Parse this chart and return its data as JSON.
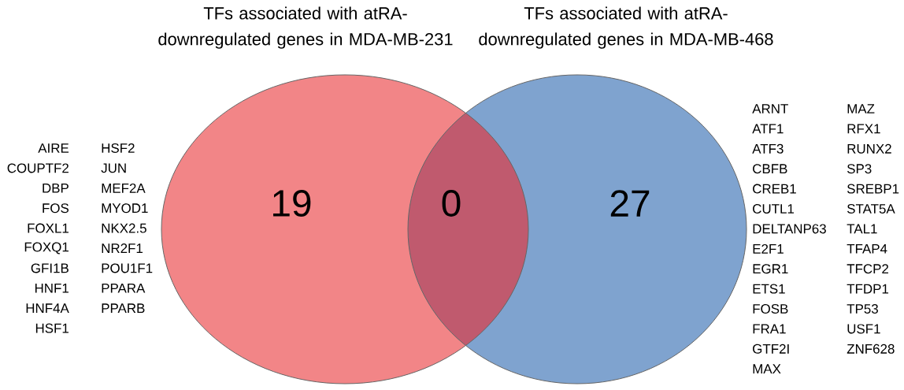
{
  "chart_data": {
    "type": "other",
    "categories": [
      null,
      null,
      null
    ],
    "values": [
      19,
      0,
      27
    ],
    "colors": [
      "#f28587",
      "#c05a6e",
      "#7fa3cf"
    ],
    "data_labels": true,
    "annotations": [
      "TFs associated with atRA-downregulated genes in MDA-MB-231",
      "TFs associated with atRA-downregulated genes in MDA-MB-468",
      "AIRE",
      "COUPTF2",
      "DBP",
      "FOS",
      "FOXL1",
      "FOXQ1",
      "GFI1B",
      "HNF1",
      "HNF4A",
      "HSF1",
      "HSF2",
      "JUN",
      "MEF2A",
      "MYOD1",
      "NKX2.5",
      "NR2F1",
      "POU1F1",
      "PPARA",
      "PPARB",
      "ARNT",
      "ATF1",
      "ATF3",
      "CBFB",
      "CREB1",
      "CUTL1",
      "DELTANP63",
      "E2F1",
      "EGR1",
      "ETS1",
      "FOSB",
      "FRA1",
      "GTF2I",
      "MAX",
      "MAZ",
      "RFX1",
      "RUNX2",
      "SP3",
      "SREBP1",
      "STAT5A",
      "TAL1",
      "TFAP4",
      "TFCP2",
      "TFDP1",
      "TP53",
      "USF1",
      "ZNF628"
    ]
  }
}
